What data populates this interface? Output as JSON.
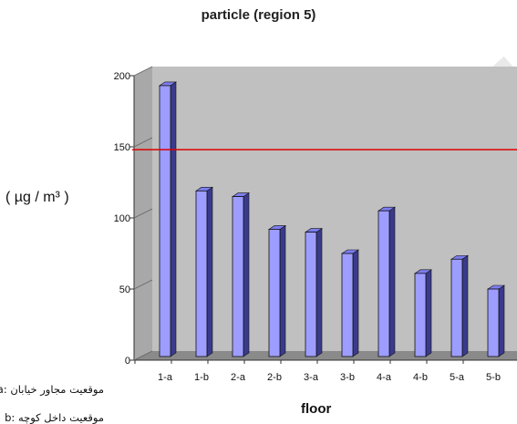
{
  "chart_data": {
    "type": "bar",
    "title": "particle (region 5)",
    "xlabel": "floor",
    "ylabel": "( µg / m³ )",
    "categories": [
      "1-a",
      "1-b",
      "2-a",
      "2-b",
      "3-a",
      "3-b",
      "4-a",
      "4-b",
      "5-a",
      "5-b"
    ],
    "values": [
      193,
      119,
      115,
      92,
      90,
      75,
      105,
      61,
      71,
      50
    ],
    "ylim": [
      0,
      200
    ],
    "yticks": [
      0,
      50,
      100,
      150,
      200
    ],
    "reference_line": 148,
    "legend_position": "none",
    "grid": false,
    "bar_color": "#9d9dff",
    "bar_side_color": "#3a3a8c",
    "bar_top_color": "#7d7df0",
    "wall_color": "#c0c0c0",
    "floor_color": "#8a8a8a",
    "reference_line_color": "#e00000"
  },
  "legend_notes": [
    {
      "key": "a",
      "text": "موقعیت مجاور خیابان"
    },
    {
      "key": "b",
      "text": "موقعیت داخل کوچه"
    }
  ]
}
